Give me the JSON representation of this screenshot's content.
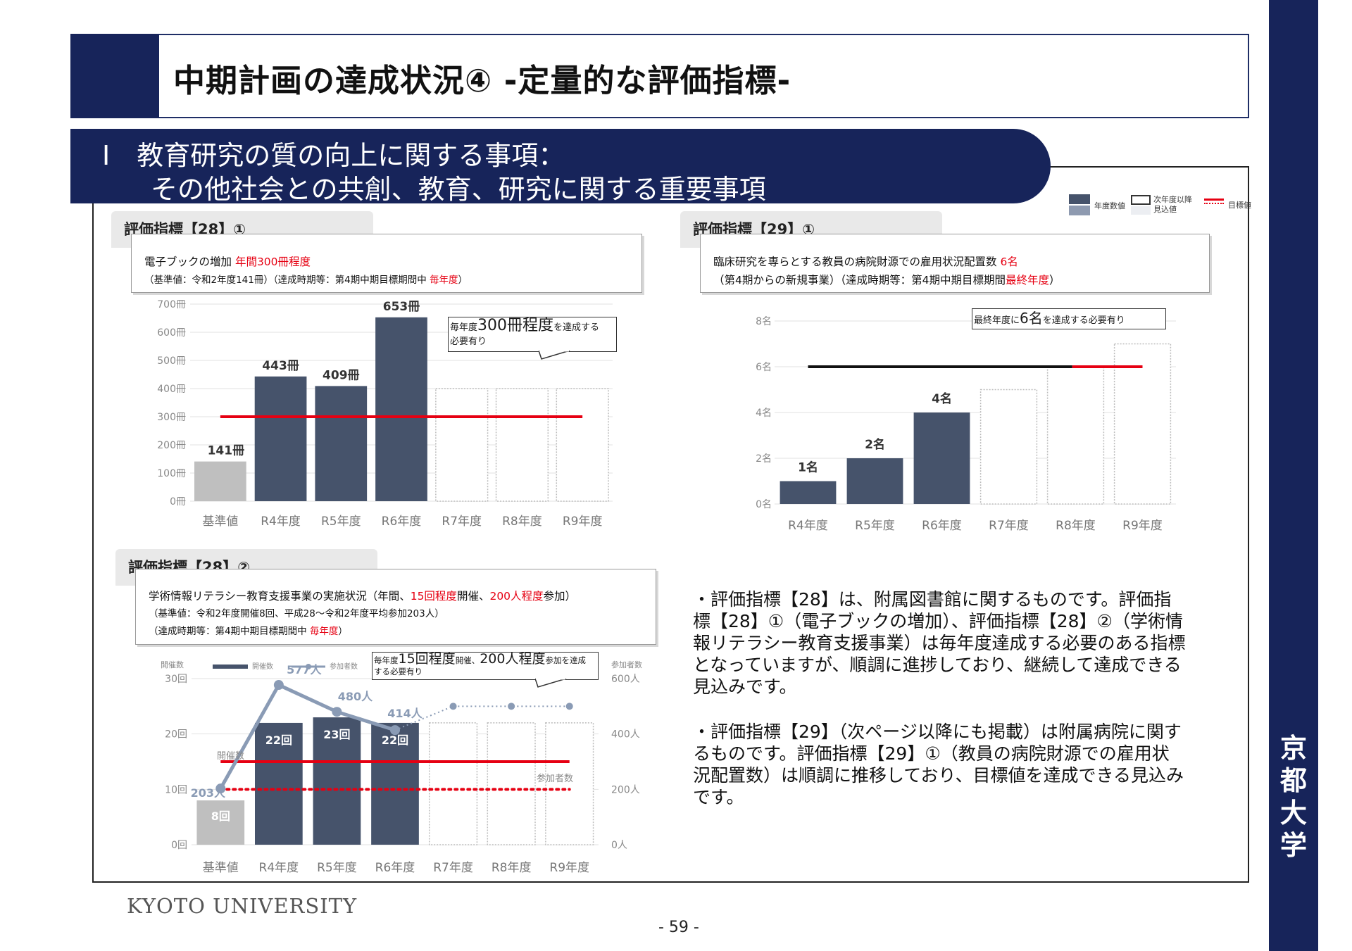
{
  "header": {
    "title": "中期計画の達成状況④ -定量的な評価指標-"
  },
  "section": {
    "line1": "Ⅰ　教育研究の質の向上に関する事項：",
    "line2": "その他社会との共創、教育、研究に関する重要事項"
  },
  "legend": {
    "actual": "年度数値",
    "forecast": "次年度以降見込値",
    "target": "目標値"
  },
  "indicator_28_1": {
    "tab": "評価指標【28】①",
    "line1_prefix": "電子ブックの増加 ",
    "line1_red": "年間300冊程度",
    "line2_prefix": "（基準値：令和2年度141冊）（達成時期等：第4期中期目標期間中 ",
    "line2_red": "毎年度",
    "line2_suffix": "）",
    "callout": {
      "p1": "毎年度",
      "p2": "300冊程度",
      "p3": "を達成する",
      "p4": "必要有り"
    }
  },
  "indicator_29_1": {
    "tab": "評価指標【29】①",
    "line1_prefix": "臨床研究を専らとする教員の病院財源での雇用状況配置数 ",
    "line1_red": "6名",
    "line2_prefix": "（第4期からの新規事業）（達成時期等：第4期中期目標期間",
    "line2_red": "最終年度",
    "line2_suffix": "）",
    "callout": {
      "p1": "最終年度に",
      "p2": "6名",
      "p3": "を達成する必要有り"
    }
  },
  "indicator_28_2": {
    "tab": "評価指標【28】②",
    "line1_prefix": "学術情報リテラシー教育支援事業の実施状況（年間、",
    "line1_red1": "15回程度",
    "line1_mid": "開催、",
    "line1_red2": "200人程度",
    "line1_suffix": "参加）",
    "line2": "（基準値：令和2年度開催8回、平成28～令和2年度平均参加203人）",
    "line3_prefix": "（達成時期等：第4期中期目標期間中 ",
    "line3_red": "毎年度",
    "line3_suffix": "）",
    "callout": {
      "p1": "毎年度",
      "p2": "15回程度",
      "p3": "開催、",
      "p4": "200人程度",
      "p5": "参加を達成",
      "p6": "する必要有り"
    }
  },
  "explanation": {
    "para1": "・評価指標【28】は、附属図書館に関するものです。評価指標【28】①（電子ブックの増加）、評価指標【28】②（学術情報リテラシー教育支援事業）は毎年度達成する必要のある指標となっていますが、順調に進捗しており、継続して達成できる見込みです。",
    "para2": "・評価指標【29】（次ページ以降にも掲載）は附属病院に関するものです。評価指標【29】①（教員の病院財源での雇用状況配置数）は順調に推移しており、目標値を達成できる見込みです。"
  },
  "footer": {
    "university": "KYOTO UNIVERSITY",
    "page": "- 59 -",
    "side_mark": "京都大学"
  },
  "chart_data": [
    {
      "type": "bar",
      "name": "評価指標【28】①",
      "categories": [
        "基準値",
        "R4年度",
        "R5年度",
        "R6年度",
        "R7年度",
        "R8年度",
        "R9年度"
      ],
      "values": [
        141,
        443,
        409,
        653,
        null,
        null,
        null
      ],
      "value_labels": [
        "141冊",
        "443冊",
        "409冊",
        "653冊",
        "",
        "",
        ""
      ],
      "bar_kind": [
        "baseline",
        "actual",
        "actual",
        "actual",
        "forecast",
        "forecast",
        "forecast"
      ],
      "forecast_values": [
        null,
        null,
        null,
        null,
        400,
        400,
        400
      ],
      "target": 300,
      "ylim": [
        0,
        700
      ],
      "yticks": [
        0,
        100,
        200,
        300,
        400,
        500,
        600,
        700
      ],
      "ytick_labels": [
        "0冊",
        "100冊",
        "200冊",
        "300冊",
        "400冊",
        "500冊",
        "600冊",
        "700冊"
      ],
      "colors": {
        "actual": "#46536b",
        "baseline": "#bfbfbf",
        "target": "#e60012"
      }
    },
    {
      "type": "bar",
      "name": "評価指標【29】①",
      "categories": [
        "R4年度",
        "R5年度",
        "R6年度",
        "R7年度",
        "R8年度",
        "R9年度"
      ],
      "values": [
        1,
        2,
        4,
        null,
        null,
        null
      ],
      "value_labels": [
        "1名",
        "2名",
        "4名",
        "",
        "",
        ""
      ],
      "bar_kind": [
        "actual",
        "actual",
        "actual",
        "forecast",
        "forecast",
        "forecast"
      ],
      "forecast_values": [
        null,
        null,
        null,
        5,
        6,
        7
      ],
      "target": 6,
      "ylim": [
        0,
        8
      ],
      "yticks": [
        0,
        2,
        4,
        6,
        8
      ],
      "ytick_labels": [
        "0名",
        "2名",
        "4名",
        "6名",
        "8名"
      ],
      "colors": {
        "actual": "#46536b",
        "target": "#e60012",
        "target_line_black": "#111111"
      }
    },
    {
      "type": "bar+line",
      "name": "評価指標【28】②",
      "categories": [
        "基準値",
        "R4年度",
        "R5年度",
        "R6年度",
        "R7年度",
        "R8年度",
        "R9年度"
      ],
      "series": [
        {
          "name": "開催数",
          "axis": "left",
          "values": [
            8,
            22,
            23,
            22,
            null,
            null,
            null
          ],
          "value_labels": [
            "8回",
            "22回",
            "23回",
            "22回",
            "",
            "",
            ""
          ],
          "bar_kind": [
            "baseline",
            "actual",
            "actual",
            "actual",
            "forecast",
            "forecast",
            "forecast"
          ],
          "forecast_values": [
            null,
            null,
            null,
            null,
            22,
            22,
            22
          ]
        },
        {
          "name": "参加者数",
          "axis": "right",
          "values": [
            203,
            577,
            480,
            414,
            null,
            null,
            null
          ],
          "value_labels": [
            "203人",
            "577人",
            "480人",
            "414人",
            "",
            "",
            ""
          ],
          "forecast_values": [
            null,
            null,
            null,
            414,
            500,
            500,
            500
          ]
        }
      ],
      "target_left": 15,
      "target_right": 200,
      "left_axis": {
        "title": "開催数",
        "ylim": [
          0,
          30
        ],
        "yticks": [
          0,
          10,
          20,
          30
        ],
        "labels": [
          "0回",
          "10回",
          "20回",
          "30回"
        ]
      },
      "right_axis": {
        "title": "参加者数",
        "ylim": [
          0,
          600
        ],
        "yticks": [
          0,
          200,
          400,
          600
        ],
        "labels": [
          "0人",
          "200人",
          "400人",
          "600人"
        ]
      },
      "annotations": {
        "bars_label": "開催数",
        "line_label": "参加者数"
      },
      "colors": {
        "actual": "#46536b",
        "baseline": "#bfbfbf",
        "line": "#8a9bb5",
        "target": "#e60012"
      }
    }
  ]
}
